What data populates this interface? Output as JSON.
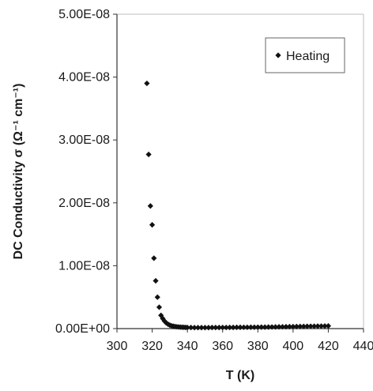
{
  "chart_data": {
    "type": "scatter",
    "xlabel": "T (K)",
    "ylabel": "DC Conductivity σ (Ω⁻¹ cm⁻¹)",
    "xlim": [
      300,
      440
    ],
    "ylim": [
      0,
      5e-08
    ],
    "x_ticks": [
      300,
      320,
      340,
      360,
      380,
      400,
      420,
      440
    ],
    "x_tick_labels": [
      "300",
      "320",
      "340",
      "360",
      "380",
      "400",
      "420",
      "440"
    ],
    "y_ticks": [
      0,
      1e-08,
      2e-08,
      3e-08,
      4e-08,
      5e-08
    ],
    "y_tick_labels": [
      "0.00E+00",
      "1.00E-08",
      "2.00E-08",
      "3.00E-08",
      "4.00E-08",
      "5.00E-08"
    ],
    "grid": false,
    "legend_position": "top-right",
    "marker_color": "#111111",
    "series": [
      {
        "name": "Heating",
        "marker": "diamond",
        "x": [
          317,
          318,
          319,
          320,
          321,
          322,
          323,
          324,
          325,
          326,
          327,
          328,
          329,
          330,
          331,
          332,
          333,
          334,
          335,
          336,
          337,
          338,
          339,
          340,
          342,
          344,
          346,
          348,
          350,
          352,
          354,
          356,
          358,
          360,
          362,
          364,
          366,
          368,
          370,
          372,
          374,
          376,
          378,
          380,
          382,
          384,
          386,
          388,
          390,
          392,
          394,
          396,
          398,
          400,
          402,
          404,
          406,
          408,
          410,
          412,
          414,
          416,
          418,
          420
        ],
        "y": [
          3.9e-08,
          2.77e-08,
          1.95e-08,
          1.65e-08,
          1.12e-08,
          7.6e-09,
          5e-09,
          3.4e-09,
          2.1e-09,
          1.6e-09,
          1.2e-09,
          9e-10,
          7e-10,
          5.5e-10,
          4.5e-10,
          3.8e-10,
          3.3e-10,
          2.9e-10,
          2.6e-10,
          2.4e-10,
          2.2e-10,
          2e-10,
          1.9e-10,
          1.8e-10,
          1.7e-10,
          1.6e-10,
          1.6e-10,
          1.6e-10,
          1.6e-10,
          1.6e-10,
          1.7e-10,
          1.7e-10,
          1.7e-10,
          1.8e-10,
          1.8e-10,
          1.9e-10,
          1.9e-10,
          2e-10,
          2e-10,
          2.1e-10,
          2.1e-10,
          2.2e-10,
          2.2e-10,
          2.3e-10,
          2.4e-10,
          2.4e-10,
          2.5e-10,
          2.6e-10,
          2.7e-10,
          2.8e-10,
          2.9e-10,
          3e-10,
          3.1e-10,
          3.2e-10,
          3.3e-10,
          3.4e-10,
          3.5e-10,
          3.6e-10,
          3.7e-10,
          3.8e-10,
          3.9e-10,
          4e-10,
          4.1e-10,
          4.2e-10
        ]
      }
    ]
  }
}
